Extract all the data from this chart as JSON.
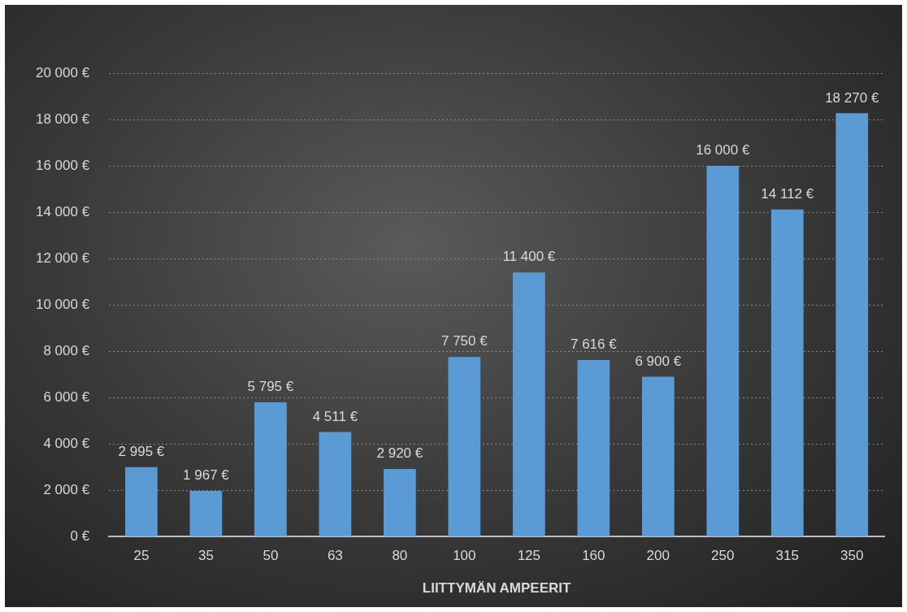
{
  "chart_data": {
    "type": "bar",
    "xlabel": "LIITTYMÄN AMPEERIT",
    "categories": [
      "25",
      "35",
      "50",
      "63",
      "80",
      "100",
      "125",
      "160",
      "200",
      "250",
      "315",
      "350"
    ],
    "values": [
      2995,
      1967,
      5795,
      4511,
      2920,
      7750,
      11400,
      7616,
      6900,
      16000,
      14112,
      18270
    ],
    "value_labels": [
      "2 995 €",
      "1 967 €",
      "5 795 €",
      "4 511 €",
      "2 920 €",
      "7 750 €",
      "11 400 €",
      "7 616 €",
      "6 900 €",
      "16 000 €",
      "14 112 €",
      "18 270 €"
    ],
    "color": "#5b9bd5",
    "ylim": [
      0,
      20000
    ],
    "yticks": [
      {
        "value": 0,
        "label": "0 €"
      },
      {
        "value": 2000,
        "label": "2 000 €"
      },
      {
        "value": 4000,
        "label": "4 000 €"
      },
      {
        "value": 6000,
        "label": "6 000 €"
      },
      {
        "value": 8000,
        "label": "8 000 €"
      },
      {
        "value": 10000,
        "label": "10 000 €"
      },
      {
        "value": 12000,
        "label": "12 000 €"
      },
      {
        "value": 14000,
        "label": "14 000 €"
      },
      {
        "value": 16000,
        "label": "16 000 €"
      },
      {
        "value": 18000,
        "label": "18 000 €"
      },
      {
        "value": 20000,
        "label": "20 000 €"
      }
    ],
    "grid": "y",
    "legend": false
  }
}
